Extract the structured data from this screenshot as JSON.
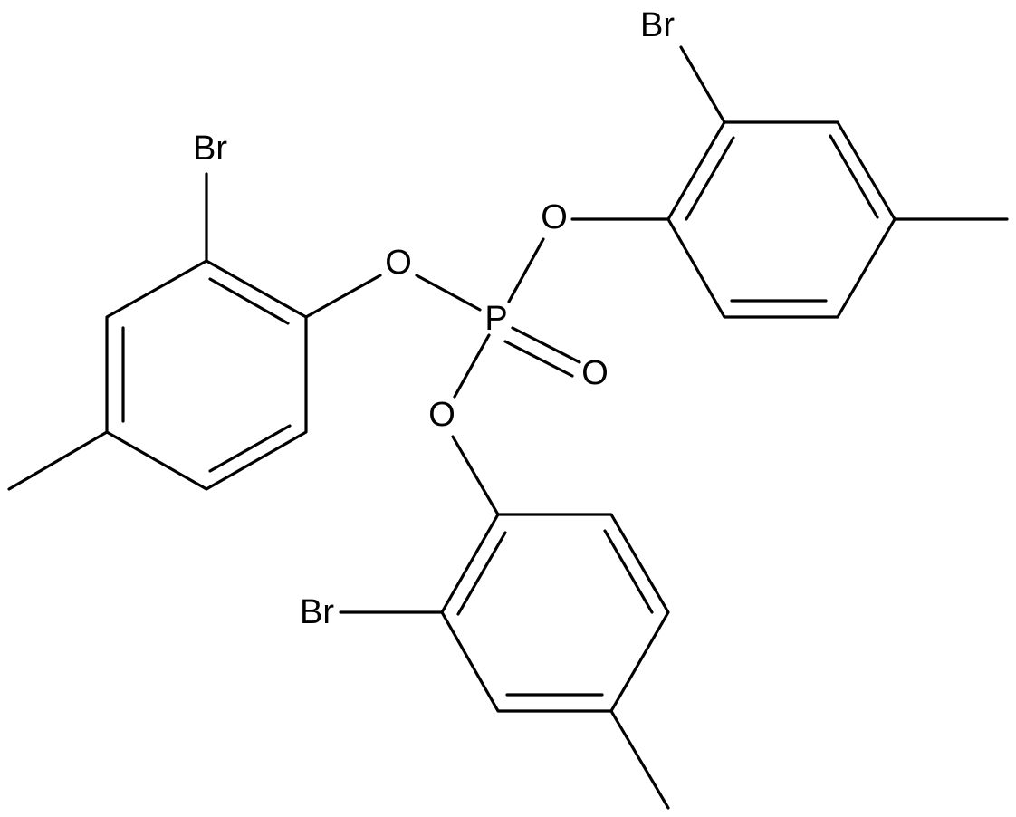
{
  "atoms": [
    {
      "label": "Br"
    },
    {
      "label": "O"
    },
    {
      "label": "P"
    },
    {
      "label": "O"
    },
    {
      "label": "O"
    },
    {
      "label": "Br"
    },
    {
      "label": "O"
    },
    {
      "label": "Br"
    }
  ]
}
